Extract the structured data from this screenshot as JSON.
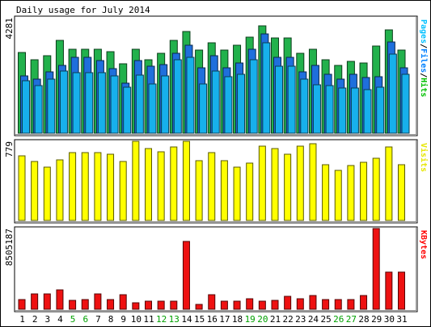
{
  "chart_data": {
    "type": "bar",
    "title": "Daily usage for July 2014",
    "days": [
      "1",
      "2",
      "3",
      "4",
      "5",
      "6",
      "7",
      "8",
      "9",
      "10",
      "11",
      "12",
      "13",
      "14",
      "15",
      "16",
      "17",
      "18",
      "19",
      "20",
      "21",
      "22",
      "23",
      "24",
      "25",
      "26",
      "27",
      "28",
      "29",
      "30",
      "31"
    ],
    "weekend_days": [
      "5",
      "6",
      "12",
      "13",
      "19",
      "20",
      "26",
      "27"
    ],
    "panels": [
      {
        "id": "hits-files-pages",
        "max_label": "4281",
        "ylim": [
          0,
          4281
        ],
        "legend": [
          {
            "text": "Pages",
            "color": "#00c0ff"
          },
          {
            "text": "/",
            "color": "#000000"
          },
          {
            "text": "Files",
            "color": "#0080ff"
          },
          {
            "text": "/",
            "color": "#000000"
          },
          {
            "text": "Hits",
            "color": "#00c000"
          }
        ],
        "series": [
          {
            "name": "Hits",
            "color": "#22b14c",
            "values": [
              2998,
              2736,
              2882,
              3431,
              3099,
              3128,
              3099,
              3011,
              2560,
              3128,
              2736,
              2955,
              3440,
              3772,
              3070,
              3353,
              3070,
              3255,
              3577,
              3986,
              3519,
              3519,
              2955,
              3109,
              2736,
              2520,
              2677,
              2618,
              3245,
              3831,
              3070
            ]
          },
          {
            "name": "Files",
            "color": "#1f6fdc",
            "values": [
              2118,
              2020,
              2285,
              2520,
              2813,
              2813,
              2696,
              2402,
              1863,
              2697,
              2480,
              2530,
              2971,
              3253,
              2413,
              2882,
              2433,
              2599,
              3108,
              3675,
              2813,
              2813,
              2285,
              2512,
              2197,
              2011,
              2187,
              2070,
              2110,
              3381,
              2412
            ]
          },
          {
            "name": "Pages",
            "color": "#17b0ec",
            "values": [
              1946,
              1777,
              1996,
              2296,
              2246,
              2258,
              2258,
              2117,
              1706,
              2164,
              1815,
              2125,
              2714,
              2824,
              1829,
              2305,
              2100,
              2197,
              2733,
              3361,
              2471,
              2471,
              1996,
              1796,
              1764,
              1679,
              1670,
              1628,
              1717,
              2920,
              2177
            ]
          }
        ]
      },
      {
        "id": "visits",
        "max_label": "779",
        "ylim": [
          0,
          779
        ],
        "legend": [
          {
            "text": "Visits",
            "color": "#e6e600"
          }
        ],
        "series": [
          {
            "name": "Visits",
            "color": "#ffff00",
            "values": [
              637,
              578,
              528,
              594,
              667,
              667,
              667,
              652,
              583,
              779,
              711,
              676,
              726,
              779,
              587,
              667,
              590,
              528,
              567,
              734,
              711,
              651,
              734,
              753,
              552,
              490,
              539,
              571,
              614,
              726,
              547
            ]
          }
        ]
      },
      {
        "id": "kbytes",
        "max_label": "8505187",
        "ylim": [
          0,
          8505187
        ],
        "legend": [
          {
            "text": "KBytes",
            "color": "#ff0000"
          }
        ],
        "series": [
          {
            "name": "KBytes",
            "color": "#ee1111",
            "values": [
              1007000,
              1590000,
              1642000,
              2014000,
              901000,
              1060000,
              1590000,
              1060000,
              1537000,
              695000,
              848000,
              848000,
              848000,
              7164000,
              530000,
              1537000,
              848000,
              848000,
              1113000,
              848000,
              901000,
              1378000,
              1113000,
              1431000,
              1007000,
              1007000,
              1007000,
              1431000,
              8505187,
              3922000,
              3922000
            ]
          }
        ]
      }
    ]
  }
}
